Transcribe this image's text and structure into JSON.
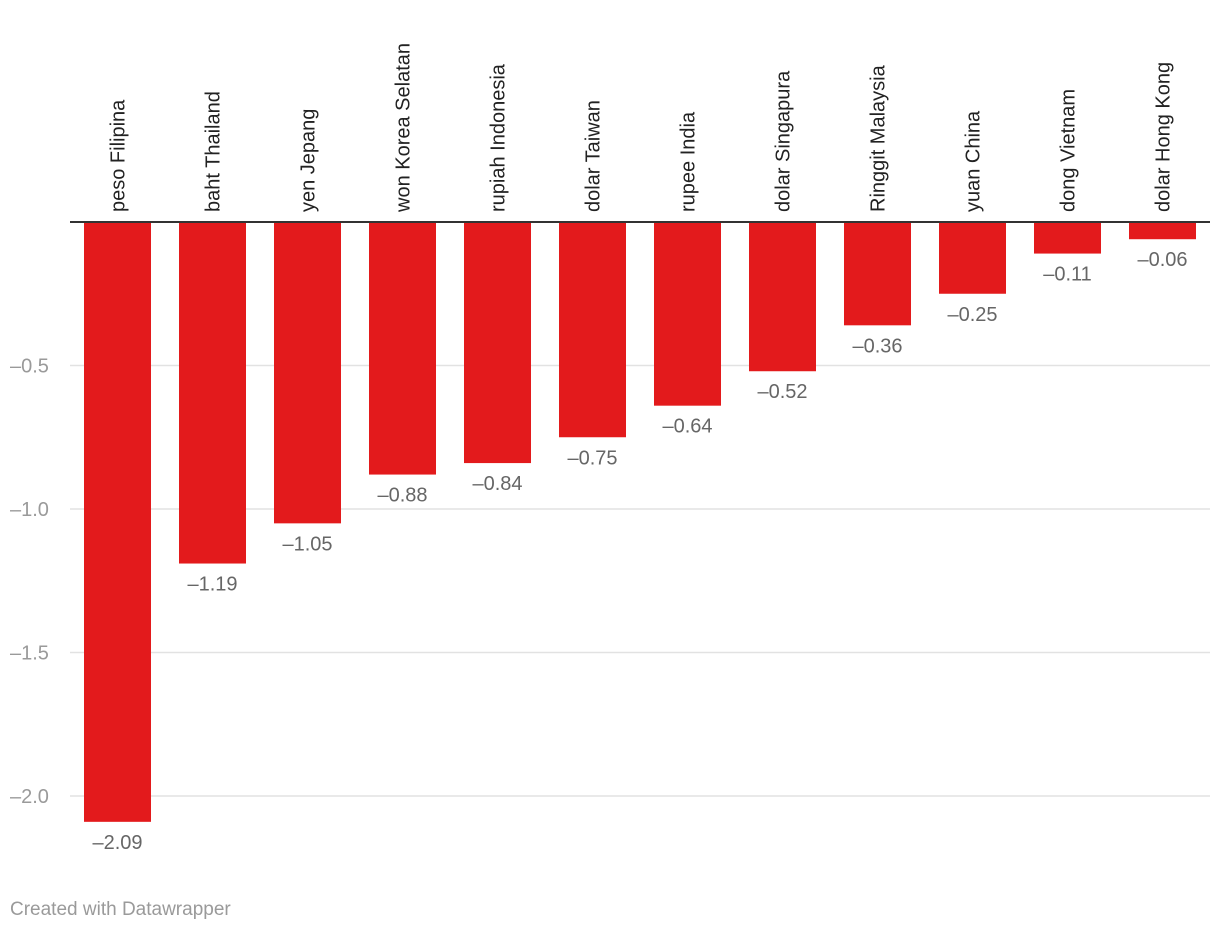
{
  "chart_data": {
    "type": "bar",
    "orientation": "vertical",
    "title": "",
    "xlabel": "",
    "ylabel": "",
    "categories": [
      "peso Filipina",
      "baht Thailand",
      "yen Jepang",
      "won Korea Selatan",
      "rupiah Indonesia",
      "dolar Taiwan",
      "rupee India",
      "dolar Singapura",
      "Ringgit Malaysia",
      "yuan China",
      "dong Vietnam",
      "dolar Hong Kong"
    ],
    "values": [
      -2.09,
      -1.19,
      -1.05,
      -0.88,
      -0.84,
      -0.75,
      -0.64,
      -0.52,
      -0.36,
      -0.25,
      -0.11,
      -0.06
    ],
    "value_labels": [
      "–2.09",
      "–1.19",
      "–1.05",
      "–0.88",
      "–0.84",
      "–0.75",
      "–0.64",
      "–0.52",
      "–0.36",
      "–0.25",
      "–0.11",
      "–0.06"
    ],
    "ylim": [
      -2.2,
      0
    ],
    "yticks": [
      -0.5,
      -1.0,
      -1.5,
      -2.0
    ],
    "ytick_labels": [
      "–0.5",
      "–1.0",
      "–1.5",
      "–2.0"
    ],
    "grid": true,
    "category_labels_position": "top",
    "bar_color": "#e31a1c"
  },
  "credit": "Created with Datawrapper",
  "colors": {
    "bar": "#e31a1c",
    "grid": "#e2e2e2",
    "axis": "#333333",
    "tick_text": "#9a9a9a",
    "value_text": "#666666",
    "category_text": "#222222"
  }
}
